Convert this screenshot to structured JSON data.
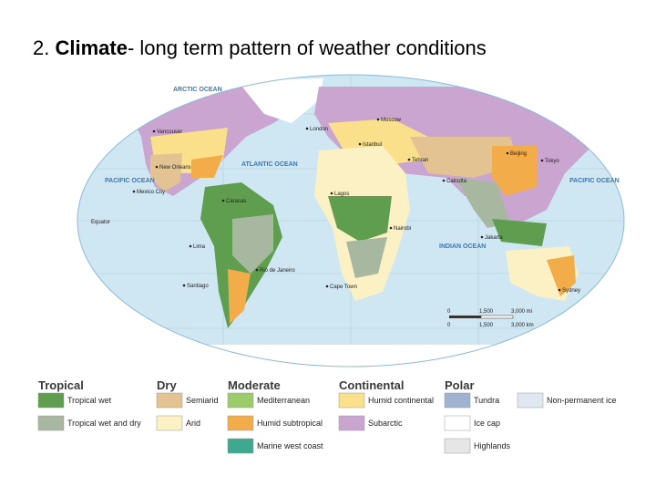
{
  "title": {
    "number": "2.",
    "term": "Climate",
    "rest": "- long term pattern of weather conditions"
  },
  "map": {
    "oceans": [
      "ARCTIC OCEAN",
      "PACIFIC OCEAN",
      "ATLANTIC OCEAN",
      "INDIAN OCEAN",
      "PACIFIC OCEAN"
    ],
    "cities": [
      "Vancouver",
      "New Orleans",
      "Mexico City",
      "Caracas",
      "Lima",
      "Santiago",
      "Rio de Janeiro",
      "Lagos",
      "Cape Town",
      "Nairobi",
      "London",
      "Moscow",
      "Istanbul",
      "Tehran",
      "Calcutta",
      "Beijing",
      "Tokyo",
      "Jakarta",
      "Sydney"
    ],
    "other_labels": [
      "Equator"
    ],
    "scale": {
      "miles": [
        "0",
        "1,500",
        "3,000 mi"
      ],
      "kilometers": [
        "0",
        "1,500",
        "3,000 km"
      ]
    }
  },
  "legend": {
    "groups": [
      {
        "title": "Tropical",
        "items": [
          {
            "label": "Tropical wet",
            "color": "#5e9e4e"
          },
          {
            "label": "Tropical wet and dry",
            "color": "#a8b8a0"
          }
        ]
      },
      {
        "title": "Dry",
        "items": [
          {
            "label": "Semiarid",
            "color": "#e3c391"
          },
          {
            "label": "Arid",
            "color": "#fbf1c4"
          }
        ]
      },
      {
        "title": "Moderate",
        "items": [
          {
            "label": "Mediterranean",
            "color": "#9acd6a"
          },
          {
            "label": "Humid subtropical",
            "color": "#f2ac4a"
          },
          {
            "label": "Marine west coast",
            "color": "#3fa890"
          }
        ]
      },
      {
        "title": "Continental",
        "items": [
          {
            "label": "Humid continental",
            "color": "#fbe08c"
          },
          {
            "label": "Subarctic",
            "color": "#c9a5cf"
          }
        ]
      },
      {
        "title": "Polar",
        "items": [
          {
            "label": "Tundra",
            "color": "#9fb2d0"
          },
          {
            "label": "Ice cap",
            "color": "#ffffff"
          },
          {
            "label": "Highlands",
            "color": "#e6e6e6"
          }
        ]
      }
    ],
    "extra": {
      "label": "Non-permanent ice",
      "color": "#dfe8f2"
    }
  }
}
